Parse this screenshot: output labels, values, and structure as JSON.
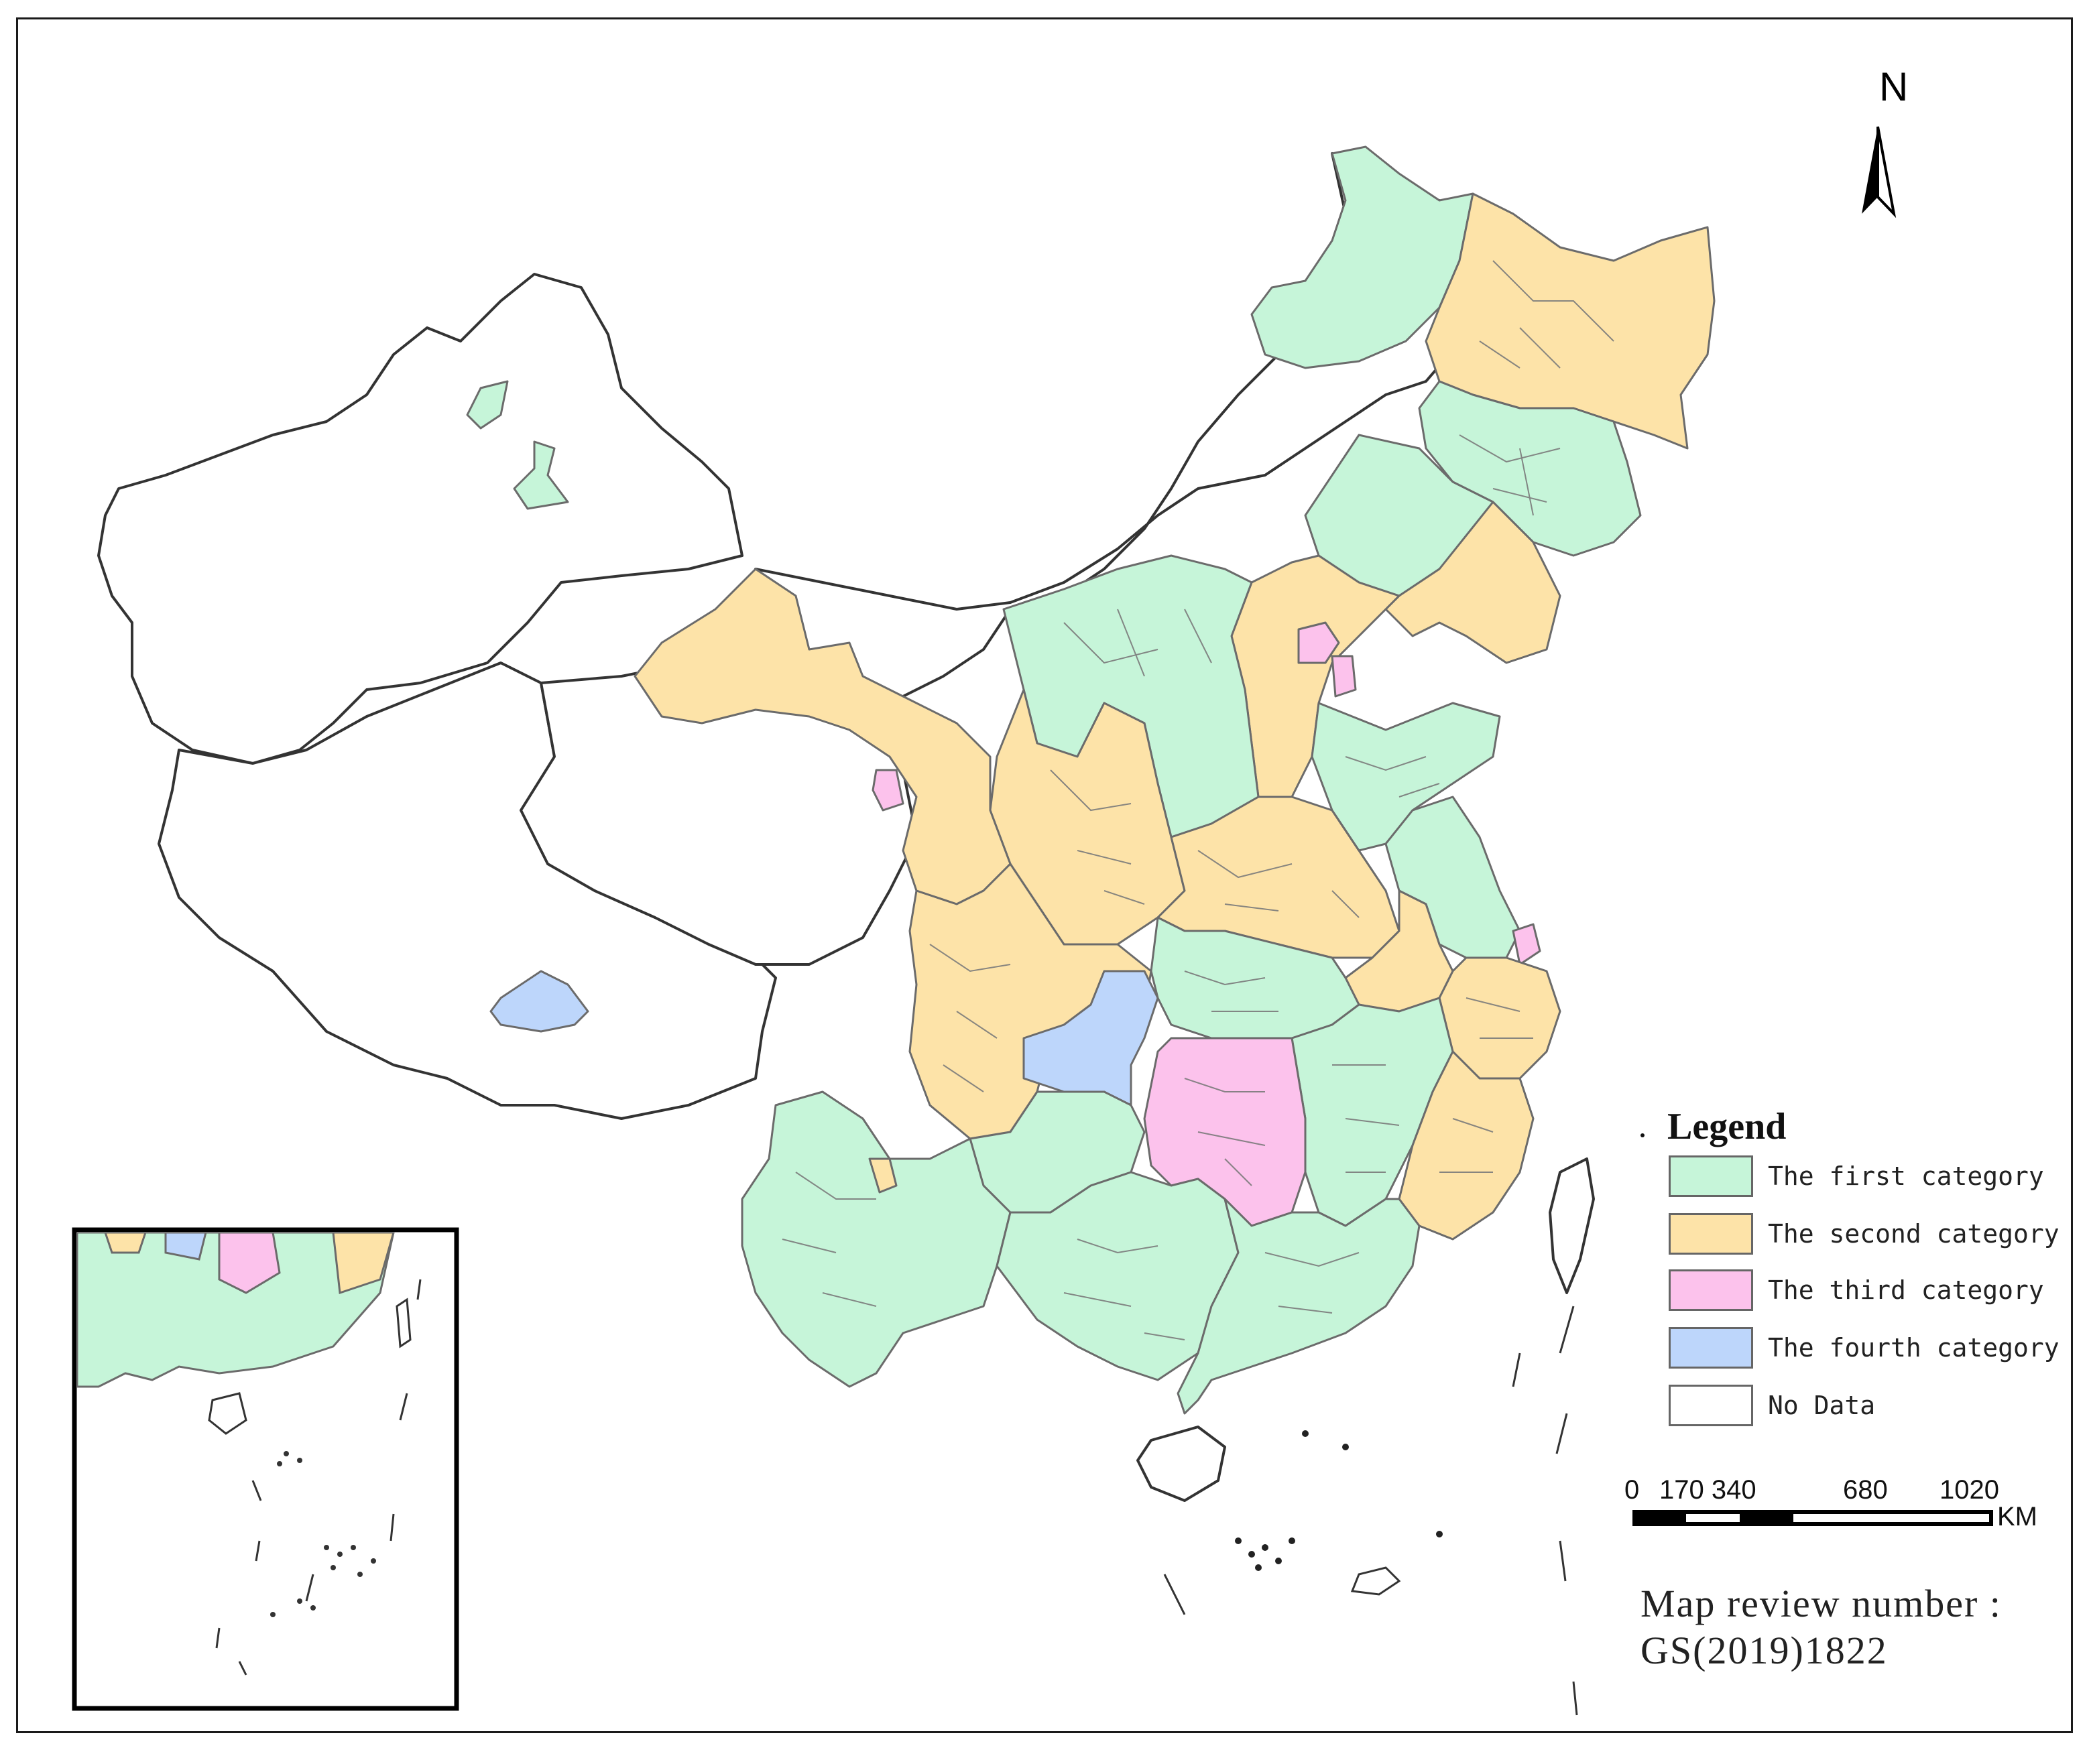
{
  "map": {
    "north_label": "N",
    "legend": {
      "title": "Legend",
      "items": [
        {
          "label": "The first category",
          "color": "#c6f5d9"
        },
        {
          "label": "The second category",
          "color": "#fde3a8"
        },
        {
          "label": "The third category",
          "color": "#fcc2ec"
        },
        {
          "label": "The fourth category",
          "color": "#bdd6fb"
        },
        {
          "label": "No Data",
          "color": "#ffffff"
        }
      ]
    },
    "scale_bar": {
      "ticks": [
        "0",
        "170 340",
        "680",
        "1020"
      ],
      "unit": "KM"
    },
    "review": {
      "line1": "Map review number :",
      "line2": "GS(2019)1822"
    },
    "colors": {
      "outline": "#333333",
      "inner_border": "#6b6b6b",
      "first": "#c6f5d9",
      "second": "#fde3a8",
      "third": "#fcc2ec",
      "fourth": "#bdd6fb"
    },
    "regions": [
      {
        "name": "heilongjiang-west",
        "category": "first"
      },
      {
        "name": "heilongjiang-east",
        "category": "second"
      },
      {
        "name": "jilin",
        "category": "first"
      },
      {
        "name": "liaoning",
        "category": "second"
      },
      {
        "name": "inner-mongolia-east",
        "category": "first"
      },
      {
        "name": "hebei",
        "category": "second"
      },
      {
        "name": "beijing-tianjin",
        "category": "third"
      },
      {
        "name": "shanxi",
        "category": "first"
      },
      {
        "name": "shaanxi",
        "category": "second"
      },
      {
        "name": "gansu",
        "category": "second"
      },
      {
        "name": "xinjiang-north",
        "category": "first"
      },
      {
        "name": "qinghai-xining",
        "category": "third"
      },
      {
        "name": "tibet-lhasa",
        "category": "fourth"
      },
      {
        "name": "shandong",
        "category": "first"
      },
      {
        "name": "henan",
        "category": "second"
      },
      {
        "name": "jiangsu",
        "category": "first"
      },
      {
        "name": "shanghai",
        "category": "third"
      },
      {
        "name": "anhui",
        "category": "second"
      },
      {
        "name": "zhejiang",
        "category": "second"
      },
      {
        "name": "fujian",
        "category": "second"
      },
      {
        "name": "hubei",
        "category": "first"
      },
      {
        "name": "chongqing",
        "category": "fourth"
      },
      {
        "name": "sichuan",
        "category": "second"
      },
      {
        "name": "hunan",
        "category": "third"
      },
      {
        "name": "jiangxi",
        "category": "first"
      },
      {
        "name": "guizhou",
        "category": "first"
      },
      {
        "name": "yunnan",
        "category": "first"
      },
      {
        "name": "guangxi",
        "category": "first"
      },
      {
        "name": "guangdong",
        "category": "first"
      },
      {
        "name": "hainan",
        "category": "no-data"
      },
      {
        "name": "taiwan",
        "category": "no-data"
      }
    ]
  }
}
